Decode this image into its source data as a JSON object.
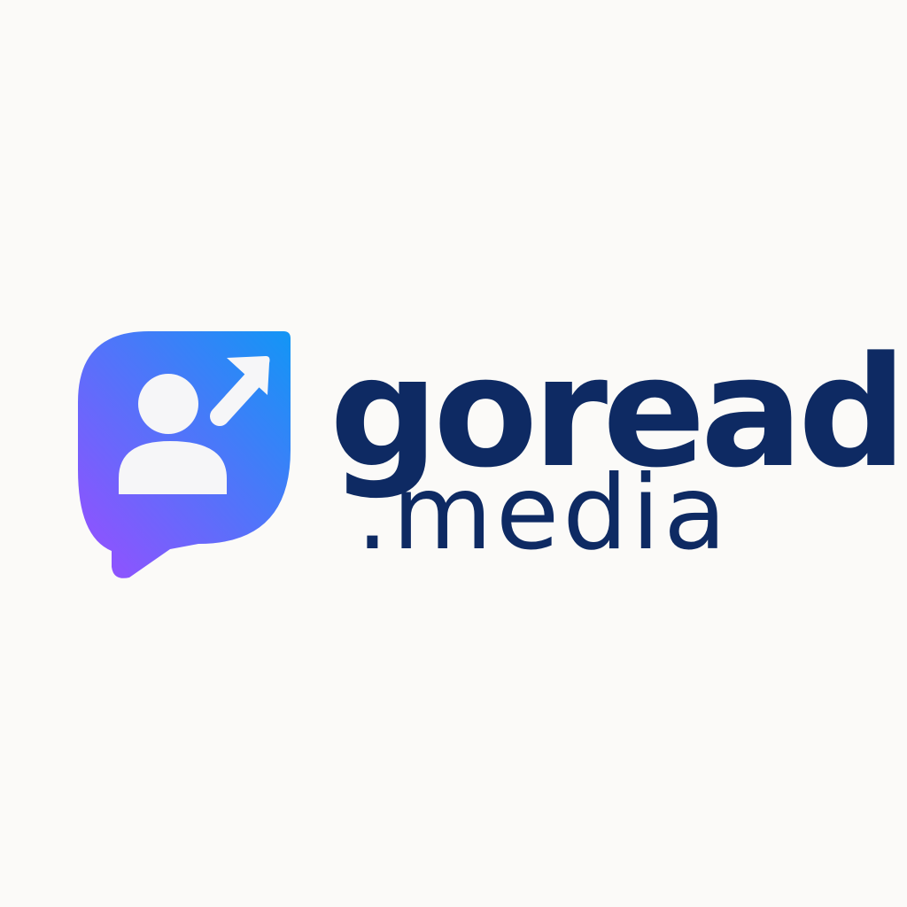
{
  "brand": {
    "name": "goread",
    "suffix": ".media"
  },
  "icons": {
    "logo_mark": "chat-bubble-user-growth-icon",
    "person": "person-icon",
    "arrow": "arrow-up-right-icon"
  },
  "colors": {
    "background": "#FBFAF8",
    "wordmark": "#0E2A63",
    "icon_gradient_start": "#9A4DFF",
    "icon_gradient_end": "#1296F5",
    "icon_glyph": "#F6F6F8"
  }
}
